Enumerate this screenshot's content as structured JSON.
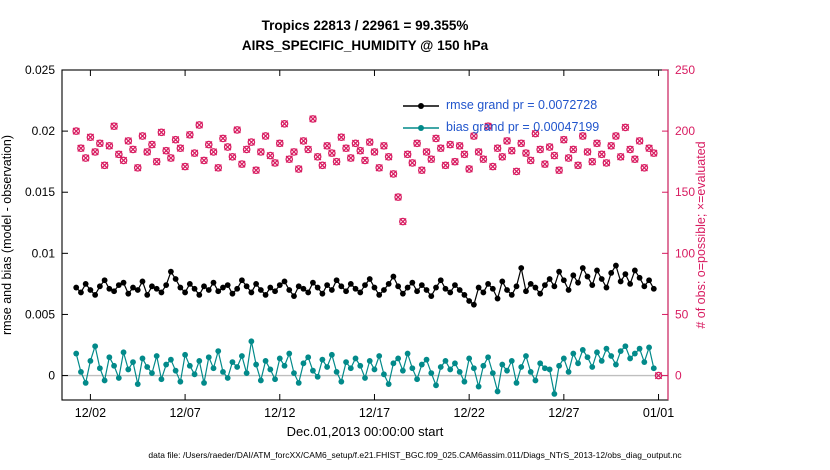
{
  "title": {
    "line1": "Tropics 22813 / 22961 = 99.355%",
    "line2": "AIRS_SPECIFIC_HUMIDITY @ 150 hPa"
  },
  "axes": {
    "left": {
      "label": "rmse and bias (model - observation)",
      "ticks": [
        0,
        0.005,
        0.01,
        0.015,
        0.02,
        0.025
      ],
      "tick_labels": [
        "0",
        "0.005",
        "0.01",
        "0.015",
        "0.02",
        "0.025"
      ],
      "lim": [
        -0.002,
        0.025
      ],
      "color": "#000000"
    },
    "right": {
      "label": "# of obs: o=possible; ×=evaluated",
      "ticks": [
        0,
        50,
        100,
        150,
        200,
        250
      ],
      "tick_labels": [
        "0",
        "50",
        "100",
        "150",
        "200",
        "250"
      ],
      "lim": [
        -20,
        250
      ],
      "color": "#d81b60"
    },
    "x": {
      "label": "Dec.01,2013 00:00:00 start",
      "ticks": [
        1,
        6,
        11,
        16,
        21,
        26,
        31
      ],
      "tick_labels": [
        "12/02",
        "12/07",
        "12/12",
        "12/17",
        "12/22",
        "12/27",
        "01/01"
      ],
      "lim": [
        -0.5,
        31.5
      ]
    }
  },
  "legend": {
    "rmse": "rmse grand pr = 0.0072728",
    "bias": "bias grand pr = 0.00047199",
    "text_color": "#2155cc"
  },
  "footer": "data file: /Users/raeder/DAI/ATM_forcXX/CAM6_setup/f.e21.FHIST_BGC.f09_025.CAM6assim.011/Diags_NTrS_2013-12/obs_diag_output.nc",
  "colors": {
    "rmse": "#000000",
    "bias": "#028a8a",
    "counts": "#d81b60",
    "zero_line": "#bfbfbf",
    "axis_box": "#000000"
  },
  "chart_data": {
    "type": "line",
    "title": "Tropics 22813 / 22961 = 99.355% — AIRS_SPECIFIC_HUMIDITY @ 150 hPa",
    "xlabel": "Dec.01,2013 00:00:00 start",
    "ylabel_left": "rmse and bias (model - observation)",
    "ylabel_right": "# of obs: o=possible; ×=evaluated",
    "grid": false,
    "legend_position": "top-right-inside",
    "x": {
      "start": 0.25,
      "step": 0.25,
      "n": 124,
      "units": "days since 2013-12-01 00:00"
    },
    "series": [
      {
        "name": "rmse",
        "axis": "left",
        "line": true,
        "marker": "dot",
        "scale": 0.0001,
        "values": [
          72,
          68,
          75,
          70,
          66,
          73,
          78,
          71,
          69,
          74,
          76,
          67,
          72,
          70,
          77,
          66,
          73,
          71,
          68,
          74,
          85,
          79,
          72,
          68,
          75,
          71,
          66,
          73,
          70,
          76,
          69,
          72,
          74,
          67,
          71,
          78,
          73,
          68,
          75,
          70,
          66,
          72,
          69,
          74,
          77,
          70,
          65,
          73,
          71,
          68,
          76,
          72,
          67,
          74,
          70,
          78,
          73,
          69,
          75,
          71,
          68,
          74,
          79,
          72,
          66,
          70,
          75,
          81,
          73,
          67,
          72,
          76,
          69,
          74,
          70,
          65,
          72,
          78,
          71,
          68,
          74,
          70,
          66,
          61,
          58,
          72,
          68,
          75,
          71,
          63,
          77,
          70,
          66,
          73,
          88,
          69,
          75,
          72,
          67,
          74,
          79,
          73,
          85,
          78,
          70,
          82,
          76,
          88,
          81,
          74,
          86,
          79,
          72,
          84,
          90,
          77,
          83,
          75,
          86,
          80,
          73,
          78,
          71,
          null
        ]
      },
      {
        "name": "bias",
        "axis": "left",
        "line": true,
        "marker": "dot",
        "scale": 0.0001,
        "values": [
          18,
          3,
          -6,
          12,
          24,
          6,
          -4,
          15,
          8,
          -2,
          19,
          5,
          11,
          -7,
          14,
          7,
          2,
          16,
          -3,
          9,
          13,
          4,
          -5,
          17,
          8,
          1,
          12,
          -6,
          15,
          6,
          20,
          3,
          -2,
          11,
          7,
          16,
          2,
          28,
          9,
          -4,
          12,
          5,
          -3,
          14,
          8,
          18,
          2,
          -6,
          10,
          15,
          4,
          -1,
          13,
          7,
          17,
          3,
          -5,
          11,
          6,
          14,
          8,
          -2,
          12,
          5,
          16,
          1,
          -7,
          10,
          14,
          4,
          18,
          6,
          -3,
          9,
          13,
          2,
          -8,
          7,
          12,
          5,
          10,
          3,
          -5,
          14,
          6,
          -9,
          8,
          15,
          2,
          -13,
          9,
          4,
          12,
          -6,
          7,
          16,
          3,
          -4,
          10,
          6,
          5,
          -15,
          8,
          14,
          3,
          18,
          10,
          21,
          15,
          7,
          19,
          12,
          22,
          16,
          9,
          20,
          24,
          14,
          18,
          22,
          11,
          23,
          6,
          null
        ]
      },
      {
        "name": "possible_obs",
        "axis": "right",
        "line": false,
        "marker": "o",
        "scale": 1,
        "values": [
          200,
          186,
          178,
          195,
          183,
          190,
          172,
          188,
          204,
          181,
          176,
          192,
          185,
          170,
          196,
          183,
          189,
          175,
          199,
          184,
          178,
          193,
          186,
          171,
          197,
          182,
          205,
          176,
          189,
          183,
          170,
          194,
          187,
          179,
          201,
          173,
          185,
          191,
          168,
          183,
          196,
          180,
          174,
          190,
          206,
          177,
          183,
          169,
          192,
          185,
          210,
          179,
          172,
          188,
          182,
          175,
          195,
          186,
          178,
          190,
          184,
          176,
          191,
          183,
          170,
          188,
          179,
          165,
          146,
          126,
          181,
          174,
          190,
          168,
          183,
          177,
          194,
          186,
          172,
          189,
          175,
          188,
          181,
          169,
          196,
          183,
          177,
          204,
          171,
          186,
          179,
          192,
          184,
          167,
          190,
          182,
          176,
          198,
          185,
          173,
          187,
          180,
          168,
          193,
          178,
          185,
          172,
          196,
          183,
          175,
          190,
          181,
          174,
          188,
          196,
          179,
          203,
          185,
          177,
          192,
          170,
          186,
          182,
          0
        ]
      },
      {
        "name": "evaluated_obs",
        "axis": "right",
        "line": false,
        "marker": "x",
        "scale": 1,
        "same_as": "possible_obs"
      }
    ]
  }
}
